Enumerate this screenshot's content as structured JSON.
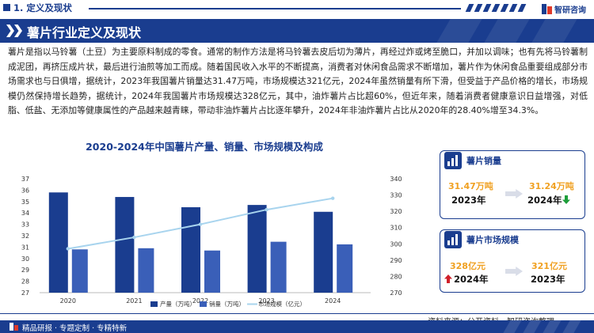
{
  "section": {
    "title": "1. 定义及现状"
  },
  "brand": {
    "name": "智研咨询"
  },
  "heading": {
    "title": "薯片行业定义及现状"
  },
  "paragraph": "薯片是指以马铃薯（土豆）为主要原料制成的零食。通常的制作方法是将马铃薯去皮后切为薄片，再经过炸或烤至脆口，并加以调味；也有先将马铃薯制成泥团，再挤压成片状，最后进行油煎等加工而成。随着国民收入水平的不断提高，消费者对休闲食品需求不断增加，薯片作为休闲食品重要组成部分市场需求也与日俱增，据统计，2023年我国薯片销量达31.47万吨，市场规模达321亿元，2024年虽然销量有所下滑，但受益于产品价格的增长，市场规模仍然保持增长趋势，据统计，2024年我国薯片市场规模达328亿元，其中，油炸薯片占比超60%，但近年来，随着消费者健康意识日益增强，对低脂、低盐、无添加等健康属性的产品越来越青睐，带动非油炸薯片占比逐年攀升，2024年非油炸薯片占比从2020年的28.40%增至34.3%。",
  "chart": {
    "title": "2020-2024年中国薯片产量、销量、市场规模及构成"
  },
  "chart_data": {
    "type": "bar",
    "title": "2020-2024年中国薯片产量、销量、市场规模及构成",
    "categories": [
      "2020",
      "2021",
      "2022",
      "2023",
      "2024"
    ],
    "series": [
      {
        "name": "产量（万吨）",
        "type": "bar",
        "axis": "left",
        "values": [
          35.8,
          35.4,
          34.5,
          34.7,
          34.1
        ],
        "color": "#1a3d8f"
      },
      {
        "name": "销量（万吨）",
        "type": "bar",
        "axis": "left",
        "values": [
          30.8,
          30.9,
          30.7,
          31.47,
          31.24
        ],
        "color": "#3a5fb8"
      },
      {
        "name": "市场规模（亿元）",
        "type": "line",
        "axis": "right",
        "values": [
          297,
          304,
          312,
          321,
          328
        ],
        "color": "#a8d4ee"
      }
    ],
    "y_left": {
      "min": 27,
      "max": 37,
      "ticks": [
        27,
        28,
        29,
        30,
        31,
        32,
        33,
        34,
        35,
        36,
        37
      ]
    },
    "y_right": {
      "min": 270,
      "max": 340,
      "ticks": [
        270,
        280,
        290,
        300,
        310,
        320,
        330,
        340
      ]
    },
    "legend": "bottom",
    "grid": false
  },
  "sales_card": {
    "title": "薯片销量",
    "from_value": "31.47万吨",
    "from_year": "2023年",
    "to_value": "31.24万吨",
    "to_year": "2024年",
    "trend": "down",
    "trend_color": "#1e9e3a"
  },
  "market_card": {
    "title": "薯片市场规模",
    "from_value": "328亿元",
    "from_year": "2024年",
    "to_value": "321亿元",
    "to_year": "2023年",
    "trend": "up",
    "trend_color": "#d0202a"
  },
  "footer": {
    "source": "资料来源：公开资料、智研咨询整理",
    "slogan": "精品研报 · 专题定制 · 专精特新"
  },
  "colors": {
    "primary": "#1a3d8f",
    "accent": "#f0a020",
    "brand_red": "#e03a2a"
  }
}
